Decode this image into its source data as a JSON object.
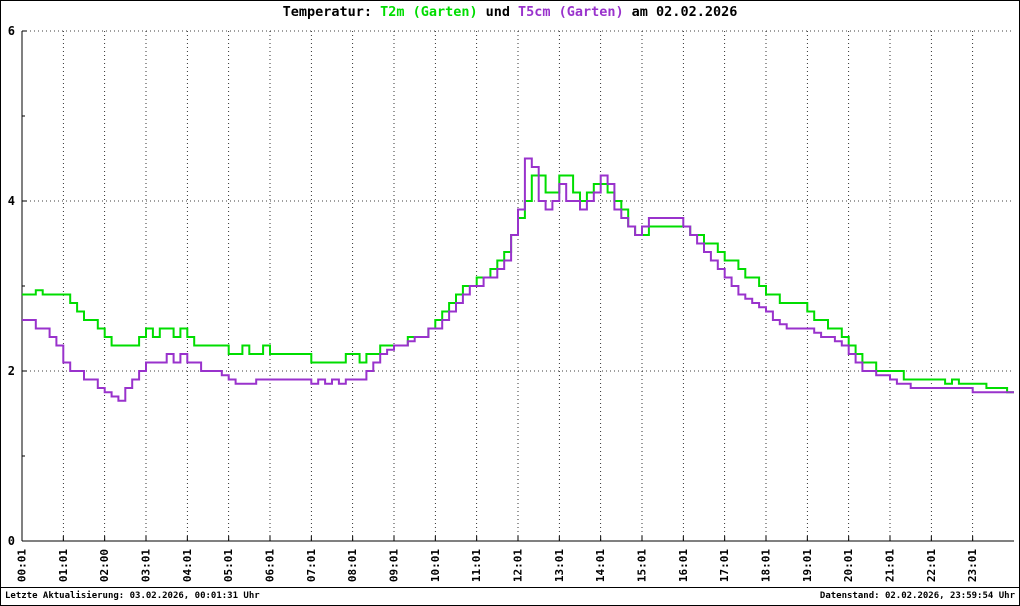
{
  "header": {
    "title_prefix": "Temperatur:",
    "series1_label": "T2m (Garten)",
    "connector": "und",
    "series2_label": "T5cm (Garten)",
    "title_suffix": "am 02.02.2026"
  },
  "footer": {
    "last_update": "Letzte Aktualisierung: 03.02.2026, 00:01:31 Uhr",
    "data_timestamp": "Datenstand: 02.02.2026, 23:59:54 Uhr"
  },
  "colors": {
    "t2m": "#00dd00",
    "t5cm": "#9932cc",
    "axis": "#000000",
    "grid": "#000000",
    "background": "#ffffff"
  },
  "chart_data": {
    "type": "line",
    "style": "step",
    "title": "Temperatur: T2m (Garten) und T5cm (Garten) am 02.02.2026",
    "xlabel": "",
    "ylabel": "",
    "ylim": [
      0,
      6
    ],
    "y_ticks": [
      0,
      2,
      4,
      6
    ],
    "y_minor_ticks": [
      1,
      3,
      5
    ],
    "grid": "dotted",
    "legend_position": "in-title",
    "x_tick_labels": [
      "00:01",
      "01:01",
      "02:00",
      "03:01",
      "04:01",
      "05:01",
      "06:01",
      "07:01",
      "08:01",
      "09:01",
      "10:01",
      "11:01",
      "12:01",
      "13:01",
      "14:01",
      "15:01",
      "16:01",
      "17:01",
      "18:01",
      "19:01",
      "20:01",
      "21:01",
      "22:01",
      "23:01"
    ],
    "sample_interval_minutes": 10,
    "series": [
      {
        "name": "T2m (Garten)",
        "color": "#00dd00",
        "values": [
          2.9,
          2.9,
          2.95,
          2.9,
          2.9,
          2.9,
          2.9,
          2.8,
          2.7,
          2.6,
          2.6,
          2.5,
          2.4,
          2.3,
          2.3,
          2.3,
          2.3,
          2.4,
          2.5,
          2.4,
          2.5,
          2.5,
          2.4,
          2.5,
          2.4,
          2.3,
          2.3,
          2.3,
          2.3,
          2.3,
          2.2,
          2.2,
          2.3,
          2.2,
          2.2,
          2.3,
          2.2,
          2.2,
          2.2,
          2.2,
          2.2,
          2.2,
          2.1,
          2.1,
          2.1,
          2.1,
          2.1,
          2.2,
          2.2,
          2.1,
          2.2,
          2.2,
          2.3,
          2.3,
          2.3,
          2.3,
          2.4,
          2.4,
          2.4,
          2.5,
          2.6,
          2.7,
          2.8,
          2.9,
          3.0,
          3.0,
          3.1,
          3.1,
          3.2,
          3.3,
          3.4,
          3.6,
          3.8,
          4.0,
          4.3,
          4.3,
          4.1,
          4.1,
          4.3,
          4.3,
          4.1,
          4.0,
          4.1,
          4.2,
          4.2,
          4.1,
          4.0,
          3.9,
          3.7,
          3.6,
          3.6,
          3.7,
          3.7,
          3.7,
          3.7,
          3.7,
          3.7,
          3.6,
          3.6,
          3.5,
          3.5,
          3.4,
          3.3,
          3.3,
          3.2,
          3.1,
          3.1,
          3.0,
          2.9,
          2.9,
          2.8,
          2.8,
          2.8,
          2.8,
          2.7,
          2.6,
          2.6,
          2.5,
          2.5,
          2.4,
          2.3,
          2.2,
          2.1,
          2.1,
          2.0,
          2.0,
          2.0,
          2.0,
          1.9,
          1.9,
          1.9,
          1.9,
          1.9,
          1.9,
          1.85,
          1.9,
          1.85,
          1.85,
          1.85,
          1.85,
          1.8,
          1.8,
          1.8,
          1.75
        ]
      },
      {
        "name": "T5cm (Garten)",
        "color": "#9932cc",
        "values": [
          2.6,
          2.6,
          2.5,
          2.5,
          2.4,
          2.3,
          2.1,
          2.0,
          2.0,
          1.9,
          1.9,
          1.8,
          1.75,
          1.7,
          1.65,
          1.8,
          1.9,
          2.0,
          2.1,
          2.1,
          2.1,
          2.2,
          2.1,
          2.2,
          2.1,
          2.1,
          2.0,
          2.0,
          2.0,
          1.95,
          1.9,
          1.85,
          1.85,
          1.85,
          1.9,
          1.9,
          1.9,
          1.9,
          1.9,
          1.9,
          1.9,
          1.9,
          1.85,
          1.9,
          1.85,
          1.9,
          1.85,
          1.9,
          1.9,
          1.9,
          2.0,
          2.1,
          2.2,
          2.25,
          2.3,
          2.3,
          2.35,
          2.4,
          2.4,
          2.5,
          2.5,
          2.6,
          2.7,
          2.8,
          2.9,
          3.0,
          3.0,
          3.1,
          3.1,
          3.2,
          3.3,
          3.6,
          3.9,
          4.5,
          4.4,
          4.0,
          3.9,
          4.0,
          4.2,
          4.0,
          4.0,
          3.9,
          4.0,
          4.1,
          4.3,
          4.2,
          3.9,
          3.8,
          3.7,
          3.6,
          3.7,
          3.8,
          3.8,
          3.8,
          3.8,
          3.8,
          3.7,
          3.6,
          3.5,
          3.4,
          3.3,
          3.2,
          3.1,
          3.0,
          2.9,
          2.85,
          2.8,
          2.75,
          2.7,
          2.6,
          2.55,
          2.5,
          2.5,
          2.5,
          2.5,
          2.45,
          2.4,
          2.4,
          2.35,
          2.3,
          2.2,
          2.1,
          2.0,
          2.0,
          1.95,
          1.95,
          1.9,
          1.85,
          1.85,
          1.8,
          1.8,
          1.8,
          1.8,
          1.8,
          1.8,
          1.8,
          1.8,
          1.8,
          1.75,
          1.75,
          1.75,
          1.75,
          1.75,
          1.75
        ]
      }
    ]
  }
}
